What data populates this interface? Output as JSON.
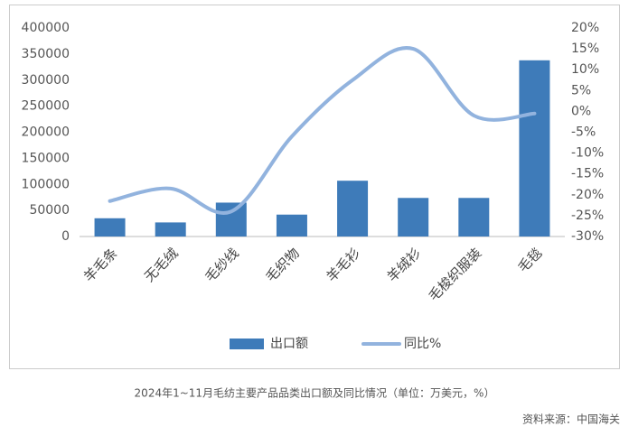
{
  "chart_data": {
    "type": "bar",
    "categories": [
      "羊毛条",
      "无毛绒",
      "毛纱线",
      "毛织物",
      "羊毛衫",
      "羊绒衫",
      "毛梭织服装",
      "毛毯"
    ],
    "series": [
      {
        "name": "出口额",
        "type": "bar",
        "color": "#3e7bb9",
        "values": [
          35000,
          27000,
          65000,
          42000,
          107000,
          74000,
          74000,
          338000
        ]
      },
      {
        "name": "同比%",
        "type": "line",
        "axis": "y2",
        "color": "#92b3de",
        "values": [
          -21.5,
          -18.5,
          -24,
          -6,
          7.5,
          15,
          -1,
          -0.5
        ]
      }
    ],
    "ylim": [
      0,
      400000
    ],
    "yticks": [
      0,
      50000,
      100000,
      150000,
      200000,
      250000,
      300000,
      350000,
      400000
    ],
    "y2lim": [
      -30,
      20
    ],
    "y2ticks": [
      {
        "value": -30,
        "label": "-30%"
      },
      {
        "value": -25,
        "label": "-25%"
      },
      {
        "value": -20,
        "label": "-20%"
      },
      {
        "value": -15,
        "label": "-15%"
      },
      {
        "value": -10,
        "label": "-10%"
      },
      {
        "value": -5,
        "label": "-5%"
      },
      {
        "value": 0,
        "label": "0%"
      },
      {
        "value": 5,
        "label": "5%"
      },
      {
        "value": 10,
        "label": "10%"
      },
      {
        "value": 15,
        "label": "15%"
      },
      {
        "value": 20,
        "label": "20%"
      }
    ],
    "legend": "bottom",
    "caption": "2024年1~11月毛纺主要产品品类出口额及同比情况（单位：万美元，%）",
    "source": "资料来源：中国海关"
  }
}
